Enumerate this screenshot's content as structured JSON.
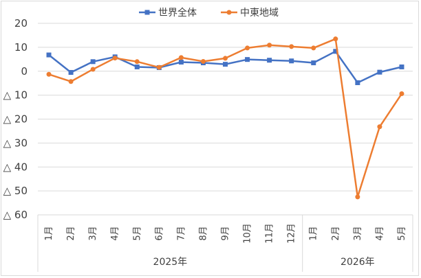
{
  "chart_data": {
    "type": "line",
    "categories": [
      "1月",
      "2月",
      "3月",
      "4月",
      "5月",
      "6月",
      "7月",
      "8月",
      "9月",
      "10月",
      "11月",
      "12月",
      "1月",
      "2月",
      "3月",
      "4月",
      "5月"
    ],
    "category_groups": [
      {
        "label": "2025年",
        "start": 0,
        "end": 11
      },
      {
        "label": "2026年",
        "start": 12,
        "end": 16
      }
    ],
    "ylim": [
      -60,
      20
    ],
    "yticks": [
      20,
      10,
      0,
      -10,
      -20,
      -30,
      -40,
      -50,
      -60
    ],
    "ytick_labels": [
      "20",
      "10",
      "0",
      "△ 10",
      "△ 20",
      "△ 30",
      "△ 40",
      "△ 50",
      "△ 60"
    ],
    "grid": true,
    "legend_position": "top",
    "series": [
      {
        "name": "世界全体",
        "color": "#4472c4",
        "marker": "square",
        "values": [
          6.8,
          -0.5,
          4.0,
          6.0,
          1.8,
          1.5,
          3.8,
          3.5,
          2.9,
          4.9,
          4.6,
          4.3,
          3.5,
          8.3,
          -4.8,
          -0.4,
          1.8
        ]
      },
      {
        "name": "中東地域",
        "color": "#ed7d31",
        "marker": "circle",
        "values": [
          -1.3,
          -4.3,
          0.8,
          5.5,
          4.0,
          1.6,
          5.7,
          4.1,
          5.4,
          9.7,
          10.9,
          10.3,
          9.7,
          13.5,
          -52.5,
          -23.2,
          -9.4
        ]
      }
    ]
  }
}
